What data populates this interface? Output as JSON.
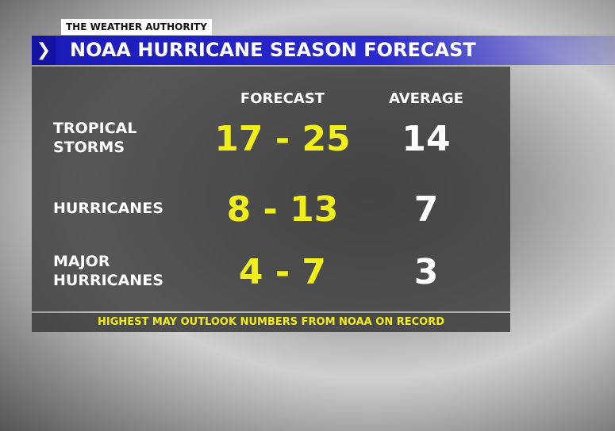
{
  "header": {
    "brand": "THE WEATHER AUTHORITY",
    "title": "NOAA HURRICANE SEASON FORECAST"
  },
  "table": {
    "columns": [
      "FORECAST",
      "AVERAGE"
    ],
    "rows": [
      [
        "TROPICAL STORMS",
        "17 - 25",
        "14"
      ],
      [
        "HURRICANES",
        "8 - 13",
        "7"
      ],
      [
        "MAJOR HURRICANES",
        "4 - 7",
        "3"
      ]
    ]
  },
  "footer": "HIGHEST MAY OUTLOOK NUMBERS FROM NOAA ON RECORD"
}
